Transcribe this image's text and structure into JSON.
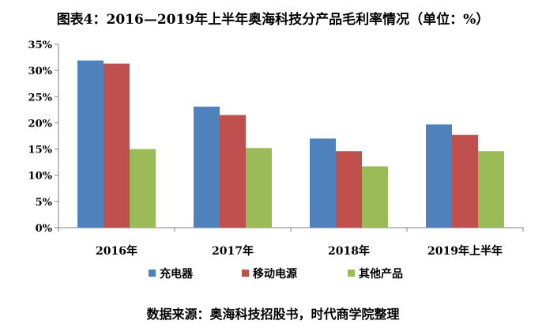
{
  "title": "图表4：2016—2019年上半年奥海科技分产品毛利率情况（单位：%）",
  "source": "数据来源：奥海科技招股书，时代商学院整理",
  "chart_data": {
    "type": "bar",
    "categories": [
      "2016年",
      "2017年",
      "2018年",
      "2019年上半年"
    ],
    "series": [
      {
        "name": "充电器",
        "color": "#4F81BD",
        "values": [
          31.9,
          23.1,
          17.0,
          19.7
        ]
      },
      {
        "name": "移动电源",
        "color": "#C0504D",
        "values": [
          31.3,
          21.5,
          14.6,
          17.7
        ]
      },
      {
        "name": "其他产品",
        "color": "#9BBB59",
        "values": [
          15.0,
          15.2,
          11.7,
          14.6
        ]
      }
    ],
    "ylim": [
      0,
      35
    ],
    "yticks": [
      "0%",
      "5%",
      "10%",
      "15%",
      "20%",
      "25%",
      "30%",
      "35%"
    ],
    "grid": false,
    "legend_position": "bottom",
    "xlabel": "",
    "ylabel": ""
  }
}
